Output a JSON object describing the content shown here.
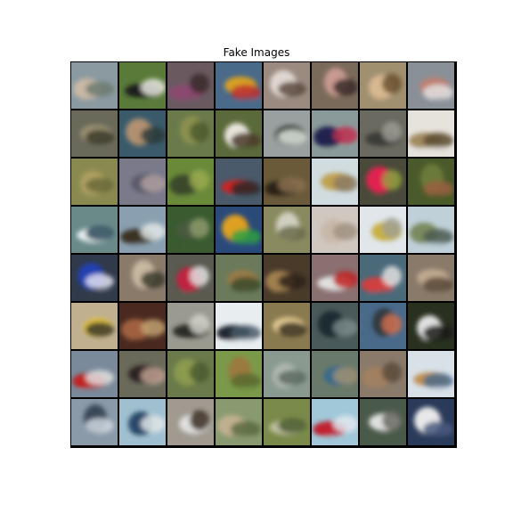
{
  "figure": {
    "title": "Fake Images"
  },
  "grid": {
    "rows": 8,
    "cols": 8,
    "tiles": [
      {
        "bg": "#8a9aa0",
        "blob": "#c9b8a5",
        "accent": "#6b7a70"
      },
      {
        "bg": "#5a7a3a",
        "blob": "#1e1e1e",
        "accent": "#e8e8e0"
      },
      {
        "bg": "#6a5a60",
        "blob": "#8a4a70",
        "accent": "#3a2a2a"
      },
      {
        "bg": "#4a6a8a",
        "blob": "#d8a020",
        "accent": "#c03030"
      },
      {
        "bg": "#9a8a80",
        "blob": "#e0d6d0",
        "accent": "#5a4a40"
      },
      {
        "bg": "#7a6a5a",
        "blob": "#c89a90",
        "accent": "#3a2a2a"
      },
      {
        "bg": "#a09070",
        "blob": "#d8b890",
        "accent": "#6a5030"
      },
      {
        "bg": "#8a9098",
        "blob": "#c08070",
        "accent": "#e0e0e0"
      },
      {
        "bg": "#6a6a5a",
        "blob": "#9a9070",
        "accent": "#3a3a2a"
      },
      {
        "bg": "#3a5a6a",
        "blob": "#b09070",
        "accent": "#2a3a3a"
      },
      {
        "bg": "#6a7a4a",
        "blob": "#8a9050",
        "accent": "#4a5a2a"
      },
      {
        "bg": "#5a6a3a",
        "blob": "#e8e4dc",
        "accent": "#4a3a2a"
      },
      {
        "bg": "#9aa0a0",
        "blob": "#1e2a20",
        "accent": "#e0e8e0"
      },
      {
        "bg": "#8a9a9a",
        "blob": "#202050",
        "accent": "#c03050"
      },
      {
        "bg": "#6a6a60",
        "blob": "#3a3a38",
        "accent": "#9a9a90"
      },
      {
        "bg": "#e6e2dc",
        "blob": "#a08a60",
        "accent": "#5a4a30"
      },
      {
        "bg": "#8a8a50",
        "blob": "#b0a060",
        "accent": "#6a6a3a"
      },
      {
        "bg": "#7a7a8a",
        "blob": "#5a5a6a",
        "accent": "#b0a0a0"
      },
      {
        "bg": "#6a8a3a",
        "blob": "#3a4a2a",
        "accent": "#9aaa50"
      },
      {
        "bg": "#4a5a6a",
        "blob": "#d02020",
        "accent": "#2a2a2a"
      },
      {
        "bg": "#6a5a3a",
        "blob": "#2a2018",
        "accent": "#8a7050"
      },
      {
        "bg": "#d0dce0",
        "blob": "#c0a050",
        "accent": "#8a7a60"
      },
      {
        "bg": "#4a4a3a",
        "blob": "#e02050",
        "accent": "#90a040"
      },
      {
        "bg": "#4a5a2a",
        "blob": "#6a7a3a",
        "accent": "#9a6040"
      },
      {
        "bg": "#6a8a8a",
        "blob": "#e8f0f0",
        "accent": "#2a4a5a"
      },
      {
        "bg": "#8aa0b0",
        "blob": "#3a3020",
        "accent": "#e0e8e8"
      },
      {
        "bg": "#3a5a30",
        "blob": "#4a5a40",
        "accent": "#8a9a6a"
      },
      {
        "bg": "#2a4a7a",
        "blob": "#e0a020",
        "accent": "#30a040"
      },
      {
        "bg": "#8a8a60",
        "blob": "#d0d0c0",
        "accent": "#6a6a4a"
      },
      {
        "bg": "#d0c8c0",
        "blob": "#c8b8a8",
        "accent": "#a09080"
      },
      {
        "bg": "#e0e6ea",
        "blob": "#c8b040",
        "accent": "#a0a090"
      },
      {
        "bg": "#c0d0d8",
        "blob": "#7a8a60",
        "accent": "#4a5a50"
      },
      {
        "bg": "#303a4a",
        "blob": "#2040b0",
        "accent": "#e0e0f0"
      },
      {
        "bg": "#8a7a6a",
        "blob": "#c8b8a0",
        "accent": "#3a3a2a"
      },
      {
        "bg": "#5a5a50",
        "blob": "#c02040",
        "accent": "#e0e0e0"
      },
      {
        "bg": "#6a7a5a",
        "blob": "#9a7a4a",
        "accent": "#3a4a2a"
      },
      {
        "bg": "#4a3a2a",
        "blob": "#a08050",
        "accent": "#2a2018"
      },
      {
        "bg": "#8a7070",
        "blob": "#e0e0e0",
        "accent": "#c02020"
      },
      {
        "bg": "#4a6a7a",
        "blob": "#d04040",
        "accent": "#e0e0e0"
      },
      {
        "bg": "#8a7a6a",
        "blob": "#c0a890",
        "accent": "#5a4a3a"
      },
      {
        "bg": "#c0b090",
        "blob": "#e0c040",
        "accent": "#3a3a2a"
      },
      {
        "bg": "#4a2a20",
        "blob": "#a06040",
        "accent": "#c0a070"
      },
      {
        "bg": "#9a9a90",
        "blob": "#2a2a28",
        "accent": "#d0d0c8"
      },
      {
        "bg": "#e8eef0",
        "blob": "#202830",
        "accent": "#4a5a6a"
      },
      {
        "bg": "#8a7a50",
        "blob": "#e0c890",
        "accent": "#3a3020"
      },
      {
        "bg": "#4a5a5a",
        "blob": "#1a2a30",
        "accent": "#7a8a8a"
      },
      {
        "bg": "#4a6a8a",
        "blob": "#303a40",
        "accent": "#d07050"
      },
      {
        "bg": "#2a3020",
        "blob": "#e0e0e0",
        "accent": "#1a1a18"
      },
      {
        "bg": "#7a8a9a",
        "blob": "#c02020",
        "accent": "#e0e0e0"
      },
      {
        "bg": "#6a6a5a",
        "blob": "#2a2020",
        "accent": "#c0a090"
      },
      {
        "bg": "#6a7a4a",
        "blob": "#8a9a50",
        "accent": "#4a5a30"
      },
      {
        "bg": "#7a9a4a",
        "blob": "#9a7a40",
        "accent": "#5a6a30"
      },
      {
        "bg": "#8a9a90",
        "blob": "#b0b8b0",
        "accent": "#5a6a60"
      },
      {
        "bg": "#6a7a6a",
        "blob": "#3a6a8a",
        "accent": "#a09070"
      },
      {
        "bg": "#8a7a6a",
        "blob": "#a08060",
        "accent": "#5a4a3a"
      },
      {
        "bg": "#d8e0e8",
        "blob": "#c09050",
        "accent": "#4a6a8a"
      },
      {
        "bg": "#8a9aa8",
        "blob": "#3a4a5a",
        "accent": "#d0d8e0"
      },
      {
        "bg": "#a0c0d0",
        "blob": "#2a4a6a",
        "accent": "#e0e8e8"
      },
      {
        "bg": "#a09a90",
        "blob": "#e0e0e0",
        "accent": "#3a2a20"
      },
      {
        "bg": "#8a9a70",
        "blob": "#c0b090",
        "accent": "#5a6a40"
      },
      {
        "bg": "#7a8a4a",
        "blob": "#c0c0a0",
        "accent": "#4a5a30"
      },
      {
        "bg": "#a0c8d8",
        "blob": "#c02030",
        "accent": "#e0e8f0"
      },
      {
        "bg": "#4a5a4a",
        "blob": "#e0e0e0",
        "accent": "#6a6a60"
      },
      {
        "bg": "#2a3a5a",
        "blob": "#e8e8e8",
        "accent": "#4a5a80"
      }
    ]
  }
}
